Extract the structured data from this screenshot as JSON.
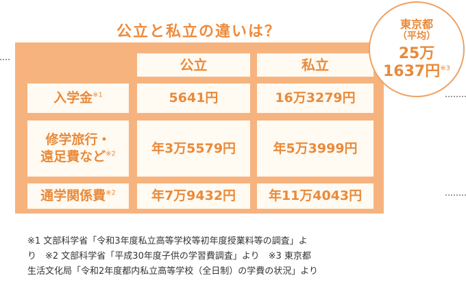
{
  "title": "公立と私立の違いは？",
  "bubble": {
    "region": "東京都",
    "sub": "（平均）",
    "amount_line1": "25万",
    "amount_line2": "1637円",
    "note": "※3"
  },
  "table": {
    "headers": [
      "公立",
      "私立"
    ],
    "rows": [
      {
        "label": [
          "入学金"
        ],
        "note": "※1",
        "public": "5641円",
        "private": "16万3279円"
      },
      {
        "label": [
          "修学旅行・",
          "遠足費など"
        ],
        "note": "※2",
        "public": "年3万5579円",
        "private": "年5万3999円"
      },
      {
        "label": [
          "通学関係費"
        ],
        "note": "※2",
        "public": "年7万9432円",
        "private": "年11万4043円"
      }
    ]
  },
  "footnotes": [
    "※1 文部科学省「令和3年度私立高等学校等初年度授業料等の調査」よ",
    "り　※2 文部科学省「平成30年度子供の学習費調査」より　※3 東京都",
    "生活文化局「令和2年度都内私立高等学校（全日制）の学費の状況」より"
  ]
}
